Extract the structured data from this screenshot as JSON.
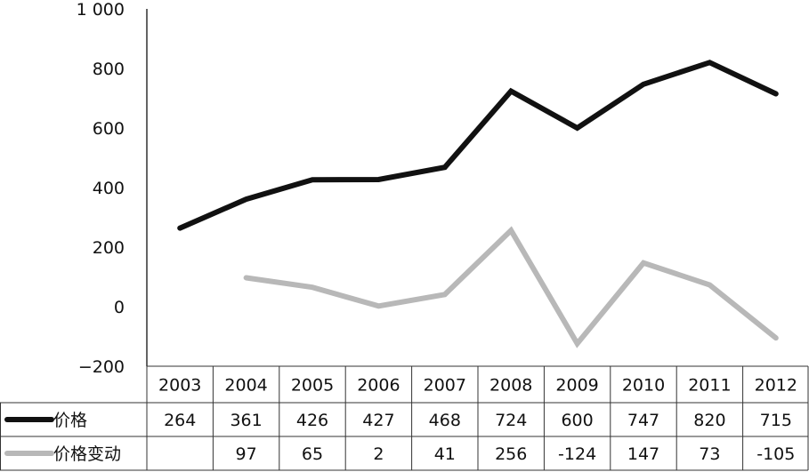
{
  "chart_data": {
    "type": "line",
    "title": "",
    "xlabel": "",
    "ylabel": "",
    "categories": [
      "2003",
      "2004",
      "2005",
      "2006",
      "2007",
      "2008",
      "2009",
      "2010",
      "2011",
      "2012"
    ],
    "ylim": [
      -200,
      1000
    ],
    "y_ticks": [
      -200,
      0,
      200,
      400,
      600,
      800,
      1000
    ],
    "y_tick_labels": [
      "−200",
      "0",
      "200",
      "400",
      "600",
      "800",
      "1 000"
    ],
    "grid": false,
    "legend": "data-table-rows",
    "series": [
      {
        "name": "价格",
        "color": "#111111",
        "values": [
          264,
          361,
          426,
          427,
          468,
          724,
          600,
          747,
          820,
          715
        ],
        "labels": [
          "264",
          "361",
          "426",
          "427",
          "468",
          "724",
          "600",
          "747",
          "820",
          "715"
        ]
      },
      {
        "name": "价格变动",
        "color": "#b8b8b8",
        "values": [
          null,
          97,
          65,
          2,
          41,
          256,
          -124,
          147,
          73,
          -105
        ],
        "labels": [
          "",
          "97",
          "65",
          "2",
          "41",
          "256",
          "-124",
          "147",
          "73",
          "-105"
        ]
      }
    ]
  }
}
